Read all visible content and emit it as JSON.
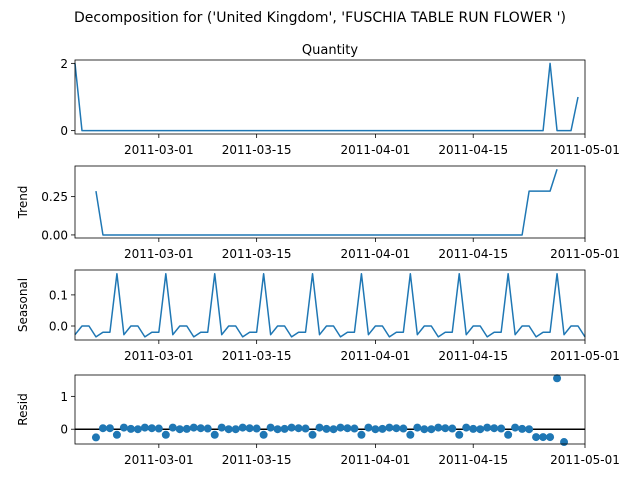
{
  "figure": {
    "suptitle": "Decomposition for ('United Kingdom', 'FUSCHIA TABLE RUN FLOWER ')"
  },
  "colors": {
    "series": "#1f77b4",
    "zero_line": "#000000"
  },
  "chart_data": [
    {
      "id": "observed",
      "type": "line",
      "title": "Quantity",
      "ylabel": "",
      "x_start": "2011-02-17",
      "x_step_days": 1,
      "xlim": [
        "2011-02-17",
        "2011-05-01"
      ],
      "xticks": [
        "2011-03-01",
        "2011-03-15",
        "2011-04-01",
        "2011-04-15",
        "2011-05-01"
      ],
      "ylim": [
        -0.1,
        2.1
      ],
      "yticks": [
        0,
        2
      ],
      "values": [
        2,
        0,
        0,
        0,
        0,
        0,
        0,
        0,
        0,
        0,
        0,
        0,
        0,
        0,
        0,
        0,
        0,
        0,
        0,
        0,
        0,
        0,
        0,
        0,
        0,
        0,
        0,
        0,
        0,
        0,
        0,
        0,
        0,
        0,
        0,
        0,
        0,
        0,
        0,
        0,
        0,
        0,
        0,
        0,
        0,
        0,
        0,
        0,
        0,
        0,
        0,
        0,
        0,
        0,
        0,
        0,
        0,
        0,
        0,
        0,
        0,
        0,
        0,
        0,
        0,
        0,
        0,
        0,
        2,
        0,
        0,
        0,
        1
      ]
    },
    {
      "id": "trend",
      "type": "line",
      "title": "",
      "ylabel": "Trend",
      "x_start": "2011-02-17",
      "x_step_days": 1,
      "xlim": [
        "2011-02-17",
        "2011-05-01"
      ],
      "xticks": [
        "2011-03-01",
        "2011-03-15",
        "2011-04-01",
        "2011-04-15",
        "2011-05-01"
      ],
      "ylim": [
        -0.02,
        0.45
      ],
      "yticks": [
        0.0,
        0.25
      ],
      "ytick_labels": [
        "0.00",
        "0.25"
      ],
      "values": [
        null,
        null,
        null,
        0.286,
        0,
        0,
        0,
        0,
        0,
        0,
        0,
        0,
        0,
        0,
        0,
        0,
        0,
        0,
        0,
        0,
        0,
        0,
        0,
        0,
        0,
        0,
        0,
        0,
        0,
        0,
        0,
        0,
        0,
        0,
        0,
        0,
        0,
        0,
        0,
        0,
        0,
        0,
        0,
        0,
        0,
        0,
        0,
        0,
        0,
        0,
        0,
        0,
        0,
        0,
        0,
        0,
        0,
        0,
        0,
        0,
        0,
        0,
        0,
        0,
        0,
        0.286,
        0.286,
        0.286,
        0.286,
        0.429,
        null,
        null,
        null
      ]
    },
    {
      "id": "seasonal",
      "type": "line",
      "title": "",
      "ylabel": "Seasonal",
      "x_start": "2011-02-17",
      "x_step_days": 1,
      "xlim": [
        "2011-02-17",
        "2011-05-01"
      ],
      "xticks": [
        "2011-03-01",
        "2011-03-15",
        "2011-04-01",
        "2011-04-15",
        "2011-05-01"
      ],
      "ylim": [
        -0.045,
        0.18
      ],
      "yticks": [
        0.0,
        0.1
      ],
      "ytick_labels": [
        "0.0",
        "0.1"
      ],
      "values": [
        -0.028,
        0,
        0,
        -0.035,
        -0.02,
        -0.02,
        0.168,
        -0.028,
        0,
        0,
        -0.035,
        -0.02,
        -0.02,
        0.168,
        -0.028,
        0,
        0,
        -0.035,
        -0.02,
        -0.02,
        0.168,
        -0.028,
        0,
        0,
        -0.035,
        -0.02,
        -0.02,
        0.168,
        -0.028,
        0,
        0,
        -0.035,
        -0.02,
        -0.02,
        0.168,
        -0.028,
        0,
        0,
        -0.035,
        -0.02,
        -0.02,
        0.168,
        -0.028,
        0,
        0,
        -0.035,
        -0.02,
        -0.02,
        0.168,
        -0.028,
        0,
        0,
        -0.035,
        -0.02,
        -0.02,
        0.168,
        -0.028,
        0,
        0,
        -0.035,
        -0.02,
        -0.02,
        0.168,
        -0.028,
        0,
        0,
        -0.035,
        -0.02,
        -0.02,
        0.168,
        -0.028,
        0,
        0,
        -0.035
      ]
    },
    {
      "id": "resid",
      "type": "scatter",
      "title": "",
      "ylabel": "Resid",
      "x_start": "2011-02-17",
      "x_step_days": 1,
      "xlim": [
        "2011-02-17",
        "2011-05-01"
      ],
      "xticks": [
        "2011-03-01",
        "2011-03-15",
        "2011-04-01",
        "2011-04-15",
        "2011-05-01"
      ],
      "ylim": [
        -0.45,
        1.65
      ],
      "yticks": [
        0,
        1
      ],
      "zero_line": true,
      "values": [
        null,
        null,
        null,
        -0.25,
        0.03,
        0.03,
        -0.17,
        0.05,
        0.01,
        0,
        0.05,
        0.03,
        0.02,
        -0.17,
        0.05,
        0,
        0.01,
        0.05,
        0.03,
        0.02,
        -0.17,
        0.05,
        0,
        0,
        0.05,
        0.03,
        0.02,
        -0.17,
        0.05,
        0,
        0.01,
        0.05,
        0.03,
        0.02,
        -0.17,
        0.05,
        0.01,
        0,
        0.05,
        0.03,
        0.02,
        -0.17,
        0.05,
        0,
        0.01,
        0.05,
        0.03,
        0.02,
        -0.17,
        0.05,
        0,
        0,
        0.05,
        0.03,
        0.02,
        -0.17,
        0.05,
        0.01,
        0,
        0.05,
        0.03,
        0.02,
        -0.17,
        0.05,
        0.01,
        0,
        -0.24,
        -0.24,
        -0.24,
        1.55,
        -0.39,
        null,
        null,
        null
      ]
    }
  ]
}
